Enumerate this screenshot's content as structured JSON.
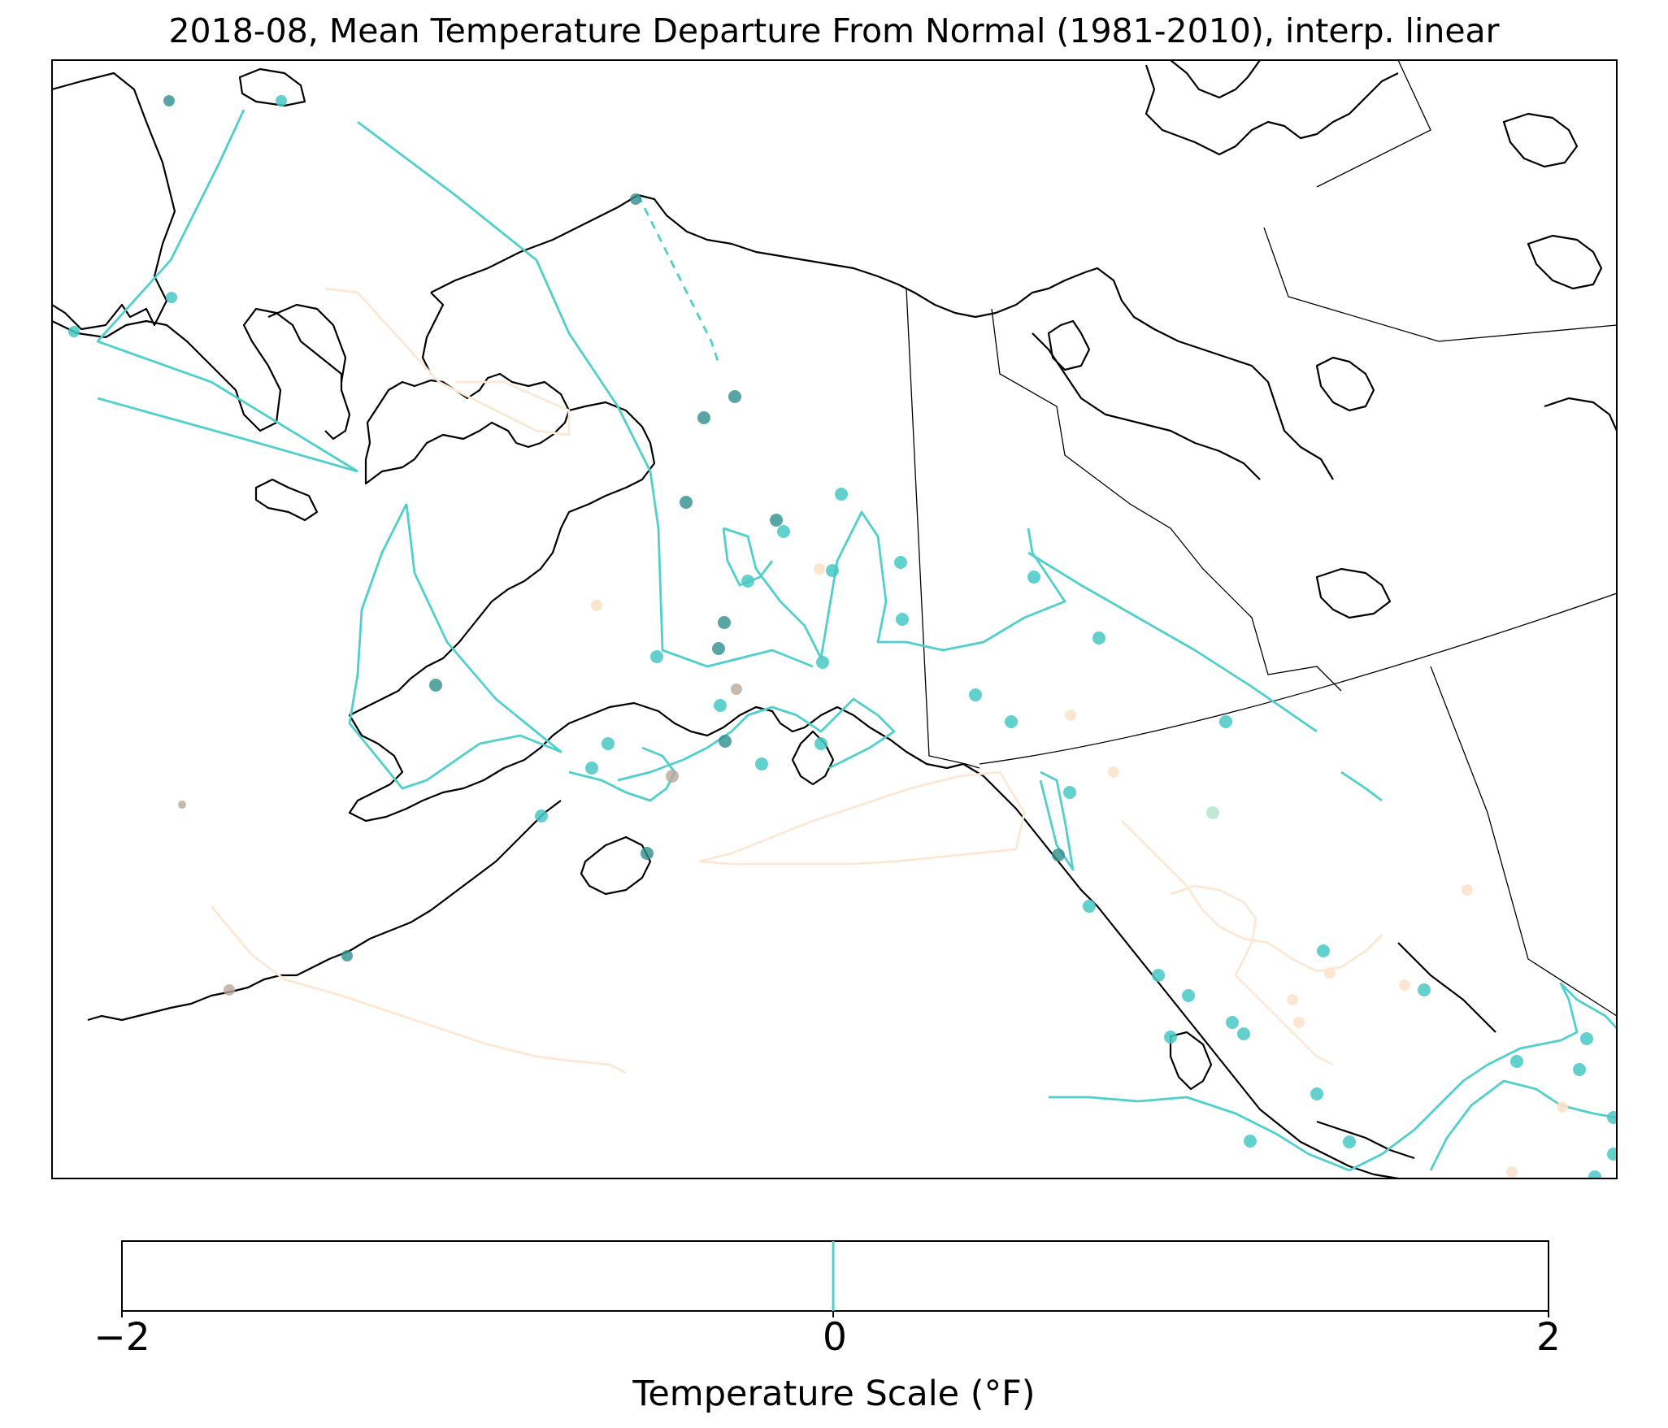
{
  "title": "2018-08, Mean Temperature Departure From Normal (1981-2010), interp. linear",
  "colorbar": {
    "label": "Temperature Scale (°F)",
    "ticks": [
      "−2",
      "0",
      "2"
    ],
    "range": [
      -2,
      2
    ],
    "contour_level": 0
  },
  "colors": {
    "coastline": "#000000",
    "boundary": "#000000",
    "positive_contour": "#fde8d4",
    "negative_contour": "#4fd0cc",
    "zero_contour": "#4fd0cc",
    "station_teal": "#46c8c4",
    "station_dark_teal": "#2f8f8c",
    "station_peach": "#fde3cc",
    "station_tan": "#b9a898"
  },
  "map": {
    "region": "Alaska and northwestern Canada",
    "projection": "conic",
    "markers": "station points",
    "contours": "interpolated isotherm lines"
  }
}
